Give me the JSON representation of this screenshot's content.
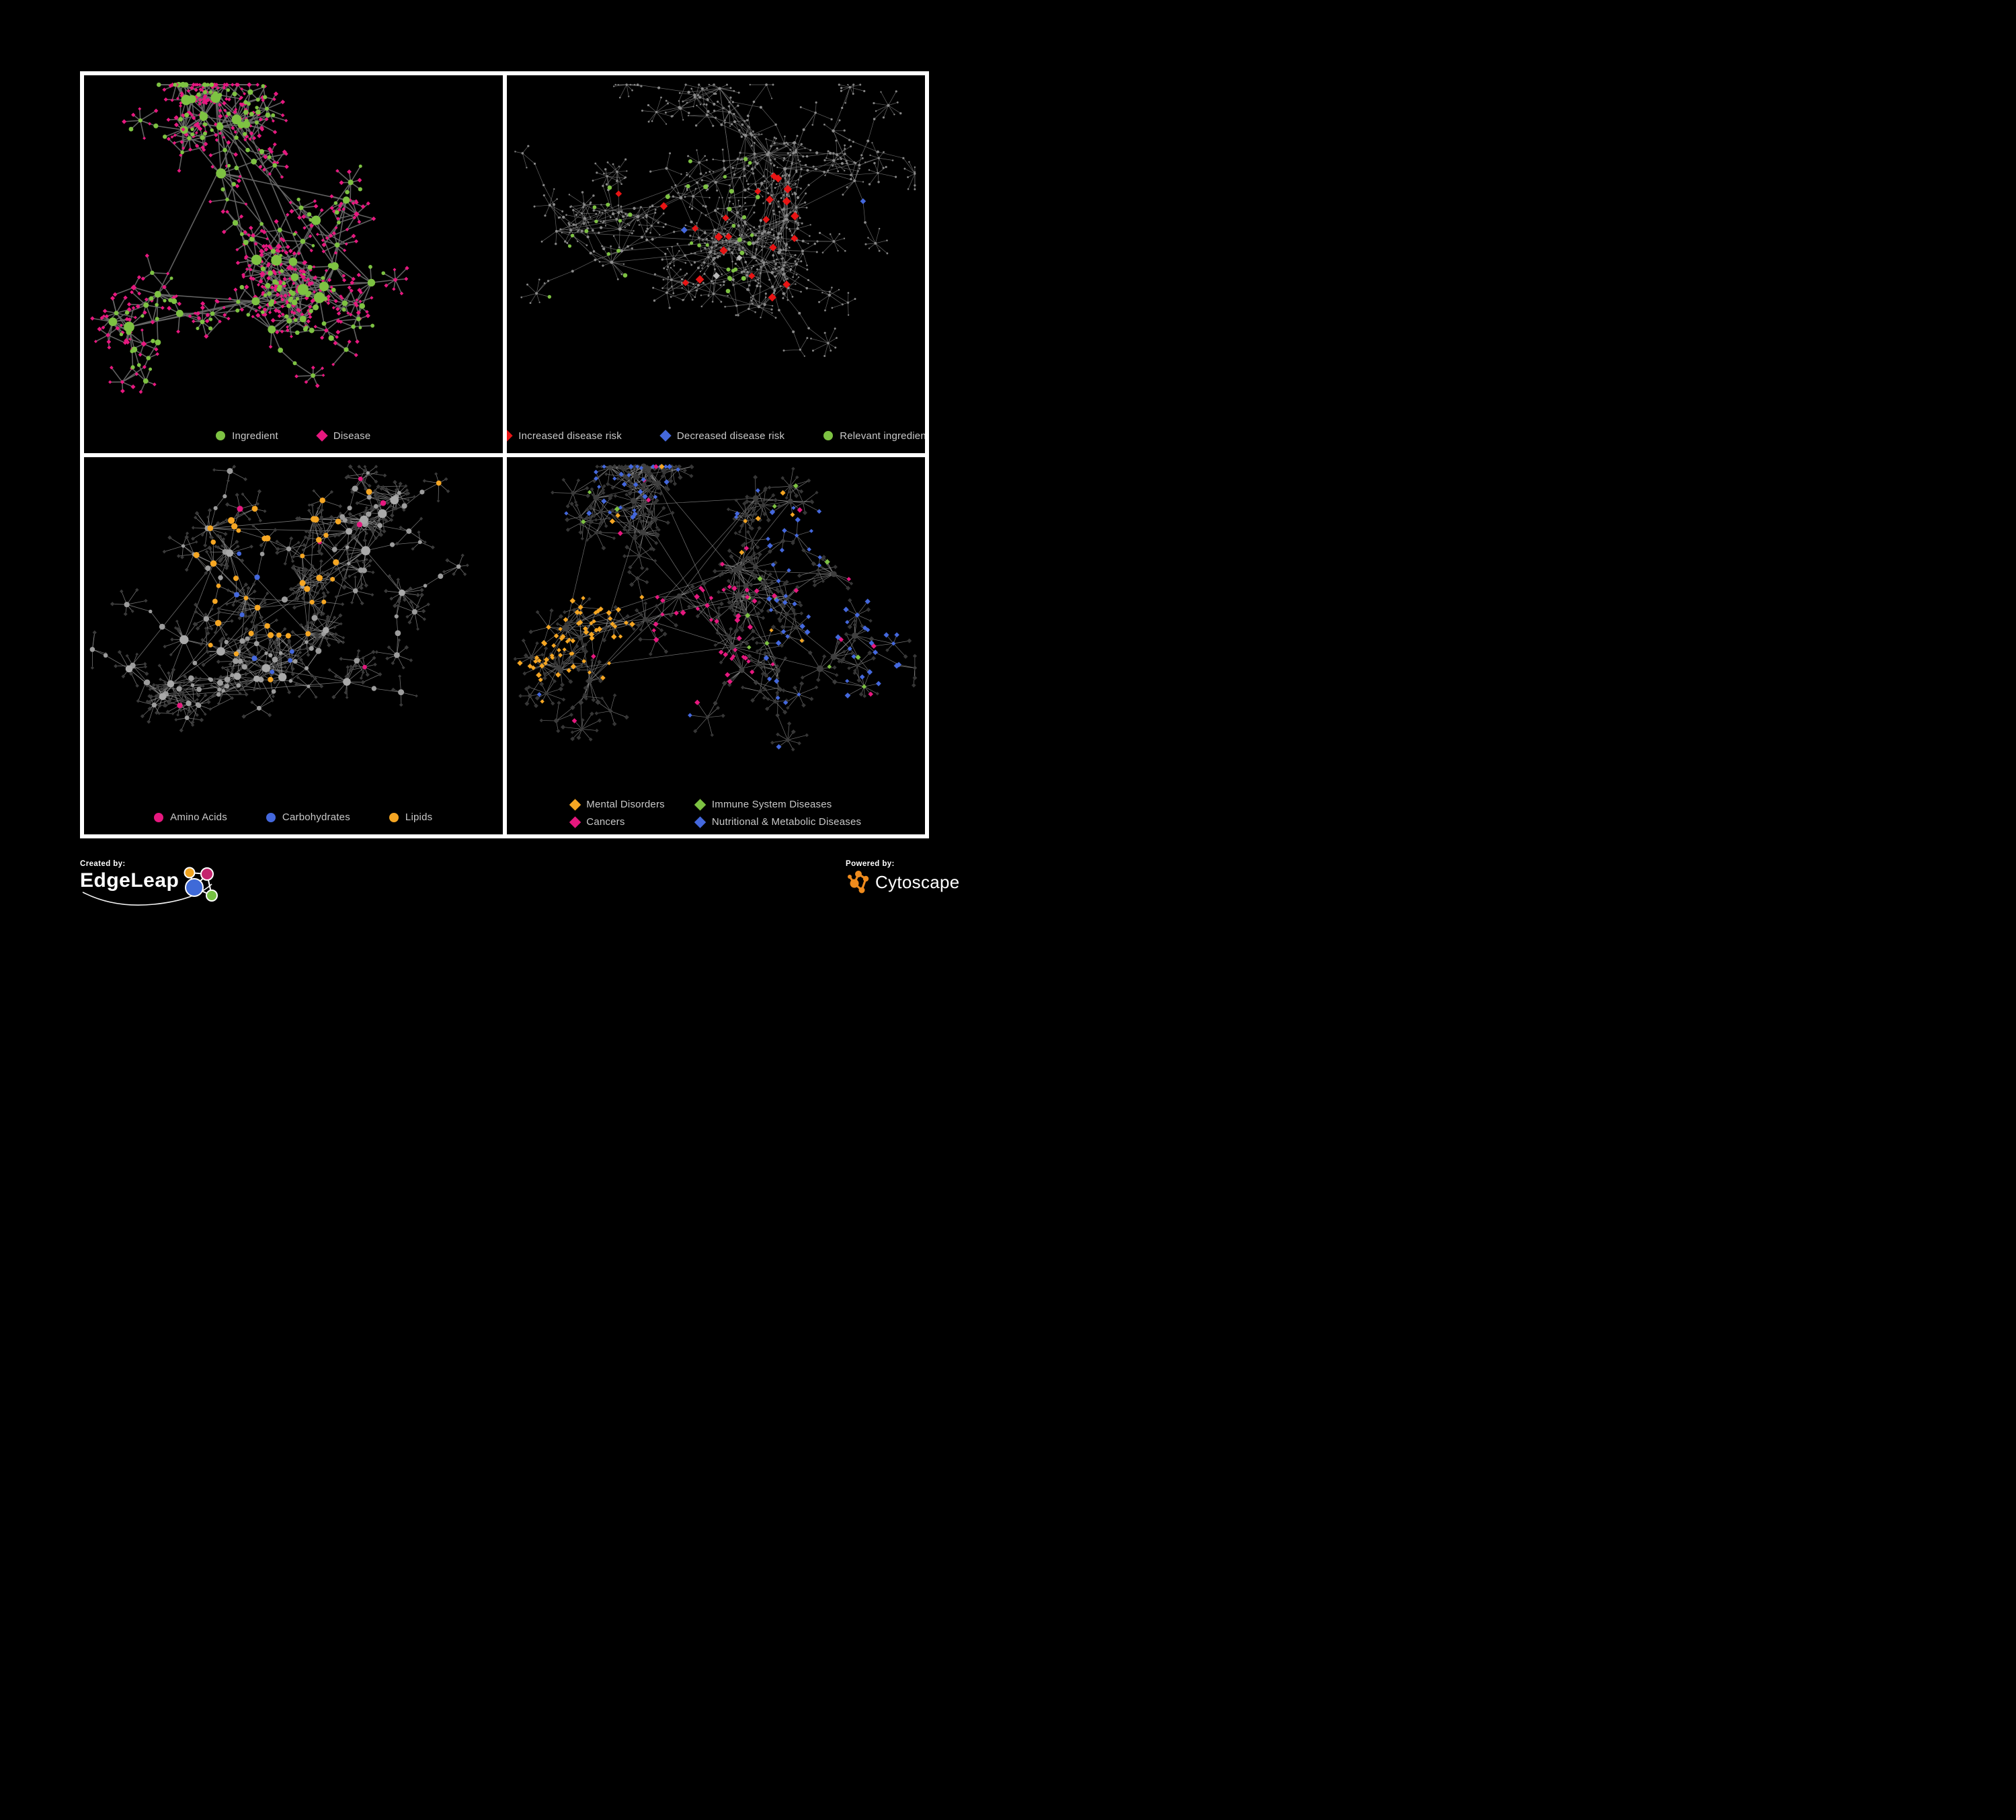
{
  "page": {
    "background": "#000000",
    "frame_color": "#ffffff"
  },
  "footer": {
    "created_by": "Created by:",
    "brand_left": "EdgeLeap",
    "powered_by": "Powered by:",
    "brand_right": "Cytoscape",
    "edgeleap_logo_colors": {
      "blue": "#3f6ad8",
      "orange": "#f0a31f",
      "pink": "#c4256e",
      "green": "#76c043",
      "line": "#ffffff"
    },
    "cytoscape_logo_color": "#ef8b1d"
  },
  "panels": [
    {
      "name": "ingredient-disease",
      "legend": [
        {
          "label": "Ingredient",
          "shape": "circle",
          "color": "#7dc242"
        },
        {
          "label": "Disease",
          "shape": "diamond",
          "color": "#e6187f"
        }
      ],
      "net": {
        "seed": 12,
        "clusters": 6,
        "hubs": 28,
        "extraLinks": 14,
        "meshLinks": 140,
        "branch": [
          2,
          3
        ],
        "steps": [
          1,
          3
        ],
        "stepLen": 0.048,
        "leaves": [
          3,
          8
        ],
        "hubLeaves": [
          4,
          11
        ],
        "leafR": 0.034,
        "roles": {
          "hub": {
            "shape": "circle",
            "color": "#7dc242",
            "size": [
              5,
              8.5
            ]
          },
          "mid": {
            "shape": "circle",
            "color": "#7dc242",
            "size": [
              2.8,
              4.4
            ]
          },
          "leaf": {
            "shape": "diamond",
            "color": "#e6187f",
            "size": [
              2.4,
              3.6
            ]
          }
        },
        "rules": [
          {
            "targets": [
              "mid"
            ],
            "prob": 0.2,
            "style": {
              "shape": "diamond",
              "color": "#e6187f",
              "size": [
                3,
                4.6
              ]
            }
          },
          {
            "targets": [
              "leaf"
            ],
            "prob": 0.13,
            "style": {
              "shape": "circle",
              "color": "#7dc242",
              "size": [
                2.4,
                3.4
              ]
            }
          }
        ],
        "edge": {
          "color": "#696969",
          "width": 1.6,
          "opacity": 0.92
        }
      }
    },
    {
      "name": "disease-risk",
      "legend": [
        {
          "label": "Increased disease risk",
          "shape": "diamond",
          "color": "#e81414"
        },
        {
          "label": "Decreased disease risk",
          "shape": "diamond",
          "color": "#4468dd"
        },
        {
          "label": "Relevant ingredient",
          "shape": "circle",
          "color": "#7dc242"
        }
      ],
      "net": {
        "seed": 5,
        "clusters": 7,
        "hubs": 30,
        "extraLinks": 16,
        "meshLinks": 220,
        "branch": [
          2,
          4
        ],
        "steps": [
          2,
          4
        ],
        "stepLen": 0.05,
        "leaves": [
          3,
          9
        ],
        "hubLeaves": [
          3,
          9
        ],
        "leafR": 0.03,
        "roles": {
          "hub": {
            "shape": "circle",
            "color": "#8f8f8f",
            "size": [
              1.9,
              2.7
            ]
          },
          "mid": {
            "shape": "circle",
            "color": "#8b8b8b",
            "size": [
              1.5,
              2.2
            ]
          },
          "leaf": {
            "shape": "circle",
            "color": "#858585",
            "size": [
              1.1,
              1.7
            ]
          }
        },
        "rules": [
          {
            "targets": [
              "mid",
              "hub"
            ],
            "prob": 0.13,
            "region": [
              0.12,
              0.72,
              0.26,
              0.6
            ],
            "style": {
              "shape": "diamond",
              "color": "#e81414",
              "size": [
                4.8,
                6.4
              ]
            }
          },
          {
            "targets": [
              "mid"
            ],
            "prob": 0.05,
            "region": [
              0.2,
              0.62,
              0.45,
              0.62
            ],
            "style": {
              "shape": "diamond",
              "color": "#b9b9b9",
              "size": [
                4.4,
                5.6
              ]
            }
          },
          {
            "targets": [
              "mid"
            ],
            "prob": 0.045,
            "region": [
              0.15,
              0.5,
              0.3,
              0.58
            ],
            "style": {
              "shape": "diamond",
              "color": "#4468dd",
              "size": [
                4.2,
                5.2
              ]
            }
          },
          {
            "targets": [
              "mid",
              "leaf"
            ],
            "prob": 0.1,
            "region": [
              0.08,
              0.6,
              0.22,
              0.62
            ],
            "style": {
              "shape": "circle",
              "color": "#7dc242",
              "size": [
                2.6,
                3.6
              ]
            }
          },
          {
            "targets": [
              "mid"
            ],
            "prob": 0.5,
            "region": [
              0.8,
              0.9,
              0.28,
              0.38
            ],
            "style": {
              "shape": "diamond",
              "color": "#4468dd",
              "size": [
                4.2,
                5.0
              ]
            }
          },
          {
            "targets": [
              "mid"
            ],
            "prob": 0.25,
            "region": [
              0.68,
              0.78,
              0.66,
              0.76
            ],
            "style": {
              "shape": "diamond",
              "color": "#e81414",
              "size": [
                4.6,
                5.6
              ]
            }
          }
        ],
        "edge": {
          "color": "#757575",
          "width": 0.7,
          "opacity": 0.85
        }
      }
    },
    {
      "name": "nutrient-classes",
      "legend": [
        {
          "label": "Amino Acids",
          "shape": "circle",
          "color": "#e6187f"
        },
        {
          "label": "Carbohydrates",
          "shape": "circle",
          "color": "#4468dd"
        },
        {
          "label": "Lipids",
          "shape": "circle",
          "color": "#f5a623"
        }
      ],
      "net": {
        "seed": 31,
        "clusters": 6,
        "hubs": 28,
        "extraLinks": 15,
        "meshLinks": 200,
        "branch": [
          2,
          3
        ],
        "steps": [
          1,
          3
        ],
        "stepLen": 0.05,
        "leaves": [
          3,
          9
        ],
        "hubLeaves": [
          4,
          12
        ],
        "leafR": 0.033,
        "roles": {
          "hub": {
            "shape": "circle",
            "color": "#a9a9a9",
            "size": [
              4.6,
              7.0
            ]
          },
          "mid": {
            "shape": "circle",
            "color": "#9c9c9c",
            "size": [
              2.6,
              4.6
            ]
          },
          "leaf": {
            "shape": "diamond",
            "color": "#3a3a3a",
            "size": [
              2.3,
              3.3
            ]
          }
        },
        "rules": [
          {
            "targets": [
              "mid",
              "hub"
            ],
            "prob": 0.5,
            "region": [
              0.3,
              0.62,
              0.16,
              0.48
            ],
            "style": {
              "shape": "circle",
              "color": "#f5a623",
              "size": [
                3.4,
                5.0
              ]
            }
          },
          {
            "targets": [
              "mid"
            ],
            "prob": 0.13,
            "region": [
              0.32,
              0.6,
              0.3,
              0.55
            ],
            "style": {
              "shape": "circle",
              "color": "#4468dd",
              "size": [
                3.0,
                4.4
              ]
            }
          },
          {
            "targets": [
              "mid"
            ],
            "prob": 0.07,
            "style": {
              "shape": "circle",
              "color": "#f5a623",
              "size": [
                3.4,
                4.8
              ]
            }
          },
          {
            "targets": [
              "mid"
            ],
            "prob": 0.08,
            "style": {
              "shape": "circle",
              "color": "#e6187f",
              "size": [
                3.2,
                4.6
              ]
            }
          },
          {
            "targets": [
              "leaf"
            ],
            "prob": 0.012,
            "style": {
              "shape": "circle",
              "color": "#4468dd",
              "size": [
                3.0,
                3.8
              ]
            }
          }
        ],
        "edge": {
          "color": "#8f8f8f",
          "width": 0.8,
          "opacity": 0.8
        }
      }
    },
    {
      "name": "disease-categories",
      "legend": [
        {
          "label": "Mental Disorders",
          "shape": "diamond",
          "color": "#f5a623"
        },
        {
          "label": "Immune System Diseases",
          "shape": "diamond",
          "color": "#7dc242"
        },
        {
          "label": "Cancers",
          "shape": "diamond",
          "color": "#e6187f"
        },
        {
          "label": "Nutritional & Metabolic Diseases",
          "shape": "diamond",
          "color": "#4468dd"
        }
      ],
      "net": {
        "seed": 44,
        "clusters": 7,
        "hubs": 30,
        "extraLinks": 14,
        "meshLinks": 200,
        "branch": [
          2,
          3
        ],
        "steps": [
          1,
          3
        ],
        "stepLen": 0.05,
        "leaves": [
          4,
          10
        ],
        "hubLeaves": [
          4,
          12
        ],
        "leafR": 0.033,
        "roles": {
          "hub": {
            "shape": "circle",
            "color": "#3f3f3f",
            "size": [
              3.6,
              5.2
            ]
          },
          "mid": {
            "shape": "diamond",
            "color": "#3b3b3b",
            "size": [
              3.0,
              4.2
            ]
          },
          "leaf": {
            "shape": "diamond",
            "color": "#363636",
            "size": [
              2.6,
              3.6
            ]
          }
        },
        "rules": [
          {
            "targets": [
              "mid",
              "leaf"
            ],
            "prob": 0.5,
            "region": [
              0.05,
              0.3,
              0.28,
              0.6
            ],
            "style": {
              "shape": "diamond",
              "color": "#f5a623",
              "size": [
                3.0,
                4.4
              ]
            }
          },
          {
            "targets": [
              "mid",
              "leaf"
            ],
            "prob": 0.38,
            "region": [
              0.34,
              0.6,
              0.34,
              0.66
            ],
            "style": {
              "shape": "diamond",
              "color": "#e6187f",
              "size": [
                3.0,
                4.4
              ]
            }
          },
          {
            "targets": [
              "mid",
              "leaf"
            ],
            "prob": 0.3,
            "region": [
              0.62,
              0.97,
              0.14,
              0.78
            ],
            "style": {
              "shape": "diamond",
              "color": "#4468dd",
              "size": [
                3.0,
                4.4
              ]
            }
          },
          {
            "targets": [
              "mid",
              "leaf"
            ],
            "prob": 0.16,
            "region": [
              0.1,
              0.95,
              0.02,
              0.16
            ],
            "style": {
              "shape": "diamond",
              "color": "#4468dd",
              "size": [
                3.0,
                4.2
              ]
            }
          },
          {
            "targets": [
              "mid",
              "leaf"
            ],
            "prob": 0.5,
            "region": [
              0.86,
              0.99,
              0.14,
              0.24
            ],
            "style": {
              "shape": "diamond",
              "color": "#e6187f",
              "size": [
                3.0,
                4.2
              ]
            }
          },
          {
            "targets": [
              "mid",
              "leaf"
            ],
            "prob": 0.05,
            "region": [
              0.0,
              0.5,
              0.6,
              0.95
            ],
            "style": {
              "shape": "diamond",
              "color": "#4468dd",
              "size": [
                3.0,
                4.2
              ]
            }
          },
          {
            "targets": [
              "mid",
              "leaf"
            ],
            "prob": 0.03,
            "style": {
              "shape": "diamond",
              "color": "#f5a623",
              "size": [
                3.0,
                4.2
              ]
            }
          },
          {
            "targets": [
              "mid",
              "leaf"
            ],
            "prob": 0.02,
            "style": {
              "shape": "diamond",
              "color": "#7dc242",
              "size": [
                3.0,
                4.2
              ]
            }
          },
          {
            "targets": [
              "mid",
              "leaf"
            ],
            "prob": 0.02,
            "style": {
              "shape": "diamond",
              "color": "#e6187f",
              "size": [
                3.0,
                4.2
              ]
            }
          }
        ],
        "edge": {
          "color": "#9a9a9a",
          "width": 0.7,
          "opacity": 0.75
        }
      }
    }
  ],
  "chart_data": [
    {
      "panel": "top-left",
      "type": "network",
      "description": "Ingredient-disease association network; circles are ingredients, diamonds are diseases",
      "legend": [
        "Ingredient",
        "Disease"
      ],
      "node_encoding": {
        "circle": "Ingredient",
        "diamond": "Disease"
      },
      "colors": {
        "ingredient": "#7dc242",
        "disease": "#e6187f",
        "edges": "#696969"
      },
      "approx_nodes": 700
    },
    {
      "panel": "top-right",
      "type": "network",
      "description": "Same network, gray base, highlighted disease-risk nodes",
      "legend": [
        "Increased disease risk",
        "Decreased disease risk",
        "Relevant ingredient"
      ],
      "colors": {
        "increased_risk": "#e81414",
        "decreased_risk": "#4468dd",
        "relevant_ingredient": "#7dc242",
        "other": "#8f8f8f"
      },
      "approx_highlighted": {
        "increased_risk": 22,
        "decreased_risk": 6,
        "relevant_ingredient": 24,
        "gray_diamonds": 6
      }
    },
    {
      "panel": "bottom-left",
      "type": "network",
      "description": "Ingredients colored by nutrient class; diseases shown as dark diamonds",
      "legend": [
        "Amino Acids",
        "Carbohydrates",
        "Lipids"
      ],
      "colors": {
        "amino_acids": "#e6187f",
        "carbohydrates": "#4468dd",
        "lipids": "#f5a623",
        "uncategorized_ingredient": "#9c9c9c",
        "disease": "#3a3a3a"
      }
    },
    {
      "panel": "bottom-right",
      "type": "network",
      "description": "Diseases colored by category cluster; mental disorders cluster left, cancers center, nutritional & metabolic right/top",
      "legend": [
        "Mental Disorders",
        "Immune System Diseases",
        "Cancers",
        "Nutritional & Metabolic Diseases"
      ],
      "colors": {
        "mental_disorders": "#f5a623",
        "immune_system": "#7dc242",
        "cancers": "#e6187f",
        "nutritional_metabolic": "#4468dd",
        "uncategorized": "#3a3a3a"
      }
    }
  ]
}
